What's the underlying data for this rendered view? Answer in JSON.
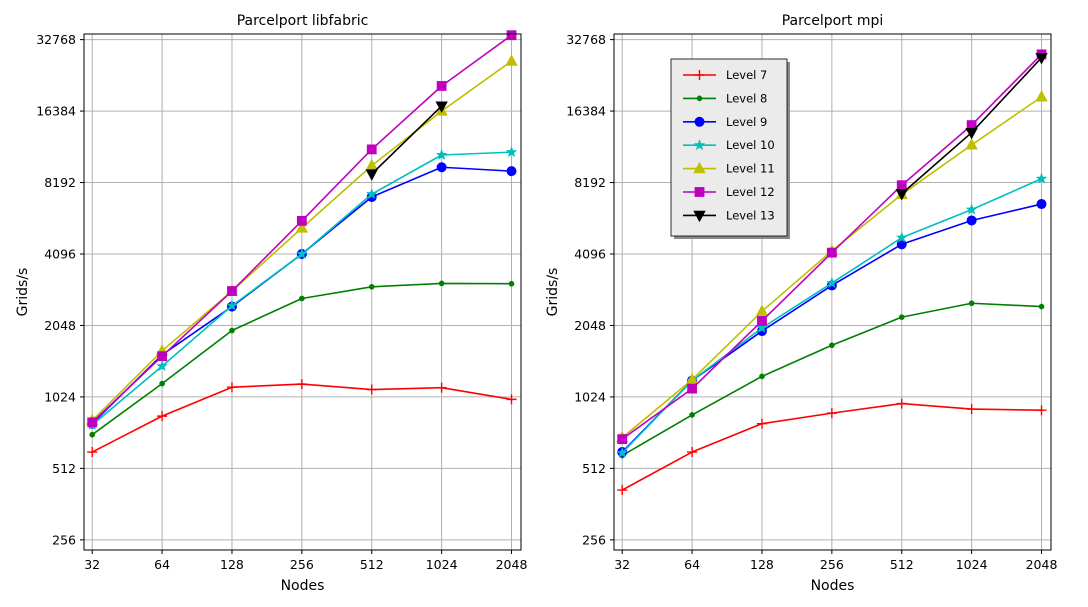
{
  "chart_data": [
    {
      "type": "line",
      "title": "Parcelport libfabric",
      "xlabel": "Nodes",
      "ylabel": "Grids/s",
      "x_scale": "log2",
      "y_scale": "log2",
      "grid": true,
      "x": [
        32,
        64,
        128,
        256,
        512,
        1024,
        2048
      ],
      "x_tick_labels": [
        "32",
        "64",
        "128",
        "256",
        "512",
        "1024",
        "2048"
      ],
      "y_tick_labels": [
        "256",
        "512",
        "1024",
        "2048",
        "4096",
        "8192",
        "16384",
        "32768"
      ],
      "y_ticks": [
        256,
        512,
        1024,
        2048,
        4096,
        8192,
        16384,
        32768
      ],
      "xlim": [
        29.5,
        2250
      ],
      "ylim": [
        232,
        34600
      ],
      "legend": null,
      "series": [
        {
          "name": "Level 7",
          "color": "#ff0000",
          "marker": "plus",
          "x": [
            32,
            64,
            128,
            256,
            512,
            1024,
            2048
          ],
          "values": [
            600,
            850,
            1125,
            1160,
            1100,
            1120,
            1000
          ]
        },
        {
          "name": "Level 8",
          "color": "#008000",
          "marker": "point",
          "x": [
            32,
            64,
            128,
            256,
            512,
            1024,
            2048
          ],
          "values": [
            710,
            1165,
            1950,
            2660,
            2980,
            3080,
            3070
          ]
        },
        {
          "name": "Level 9",
          "color": "#0000ff",
          "marker": "circle",
          "x": [
            32,
            64,
            128,
            256,
            512,
            1024,
            2048
          ],
          "values": [
            790,
            1540,
            2460,
            4096,
            7120,
            9500,
            9150
          ]
        },
        {
          "name": "Level 10",
          "color": "#00bfbf",
          "marker": "star",
          "x": [
            32,
            64,
            128,
            256,
            512,
            1024,
            2048
          ],
          "values": [
            780,
            1380,
            2480,
            4096,
            7320,
            10700,
            11000
          ]
        },
        {
          "name": "Level 11",
          "color": "#bfbf00",
          "marker": "triangle-up",
          "x": [
            32,
            64,
            128,
            256,
            512,
            1024,
            2048
          ],
          "values": [
            815,
            1600,
            2860,
            5270,
            9650,
            16384,
            26600
          ]
        },
        {
          "name": "Level 12",
          "color": "#bf00bf",
          "marker": "square",
          "x": [
            32,
            64,
            128,
            256,
            512,
            1024,
            2048
          ],
          "values": [
            800,
            1520,
            2860,
            5650,
            11300,
            20900,
            34200
          ]
        },
        {
          "name": "Level 13",
          "color": "#000000",
          "marker": "triangle-down",
          "x": [
            512,
            1024
          ],
          "values": [
            8900,
            17200
          ]
        }
      ]
    },
    {
      "type": "line",
      "title": "Parcelport mpi",
      "xlabel": "Nodes",
      "ylabel": "Grids/s",
      "x_scale": "log2",
      "y_scale": "log2",
      "grid": true,
      "x": [
        32,
        64,
        128,
        256,
        512,
        1024,
        2048
      ],
      "x_tick_labels": [
        "32",
        "64",
        "128",
        "256",
        "512",
        "1024",
        "2048"
      ],
      "y_tick_labels": [
        "256",
        "512",
        "1024",
        "2048",
        "4096",
        "8192",
        "16384",
        "32768"
      ],
      "y_ticks": [
        256,
        512,
        1024,
        2048,
        4096,
        8192,
        16384,
        32768
      ],
      "xlim": [
        29.5,
        2250
      ],
      "ylim": [
        232,
        34600
      ],
      "legend": "upper left",
      "series": [
        {
          "name": "Level 7",
          "color": "#ff0000",
          "marker": "plus",
          "x": [
            32,
            64,
            128,
            256,
            512,
            1024,
            2048
          ],
          "values": [
            415,
            600,
            790,
            875,
            960,
            910,
            900
          ]
        },
        {
          "name": "Level 8",
          "color": "#008000",
          "marker": "point",
          "x": [
            32,
            64,
            128,
            256,
            512,
            1024,
            2048
          ],
          "values": [
            580,
            860,
            1250,
            1690,
            2220,
            2540,
            2460
          ]
        },
        {
          "name": "Level 9",
          "color": "#0000ff",
          "marker": "circle",
          "x": [
            32,
            64,
            128,
            256,
            512,
            1024,
            2048
          ],
          "values": [
            600,
            1200,
            1940,
            3020,
            4500,
            5670,
            6650
          ]
        },
        {
          "name": "Level 10",
          "color": "#00bfbf",
          "marker": "star",
          "x": [
            32,
            64,
            128,
            256,
            512,
            1024,
            2048
          ],
          "values": [
            595,
            1200,
            2000,
            3090,
            4800,
            6300,
            8500
          ]
        },
        {
          "name": "Level 11",
          "color": "#bfbf00",
          "marker": "triangle-up",
          "x": [
            32,
            64,
            128,
            256,
            512,
            1024,
            2048
          ],
          "values": [
            690,
            1210,
            2350,
            4220,
            7300,
            11800,
            18800
          ]
        },
        {
          "name": "Level 12",
          "color": "#bf00bf",
          "marker": "square",
          "x": [
            32,
            64,
            128,
            256,
            512,
            1024,
            2048
          ],
          "values": [
            680,
            1110,
            2140,
            4150,
            7980,
            14300,
            28400
          ]
        },
        {
          "name": "Level 13",
          "color": "#000000",
          "marker": "triangle-down",
          "x": [
            512,
            1024,
            2048
          ],
          "values": [
            7350,
            13300,
            27500
          ]
        }
      ]
    }
  ]
}
